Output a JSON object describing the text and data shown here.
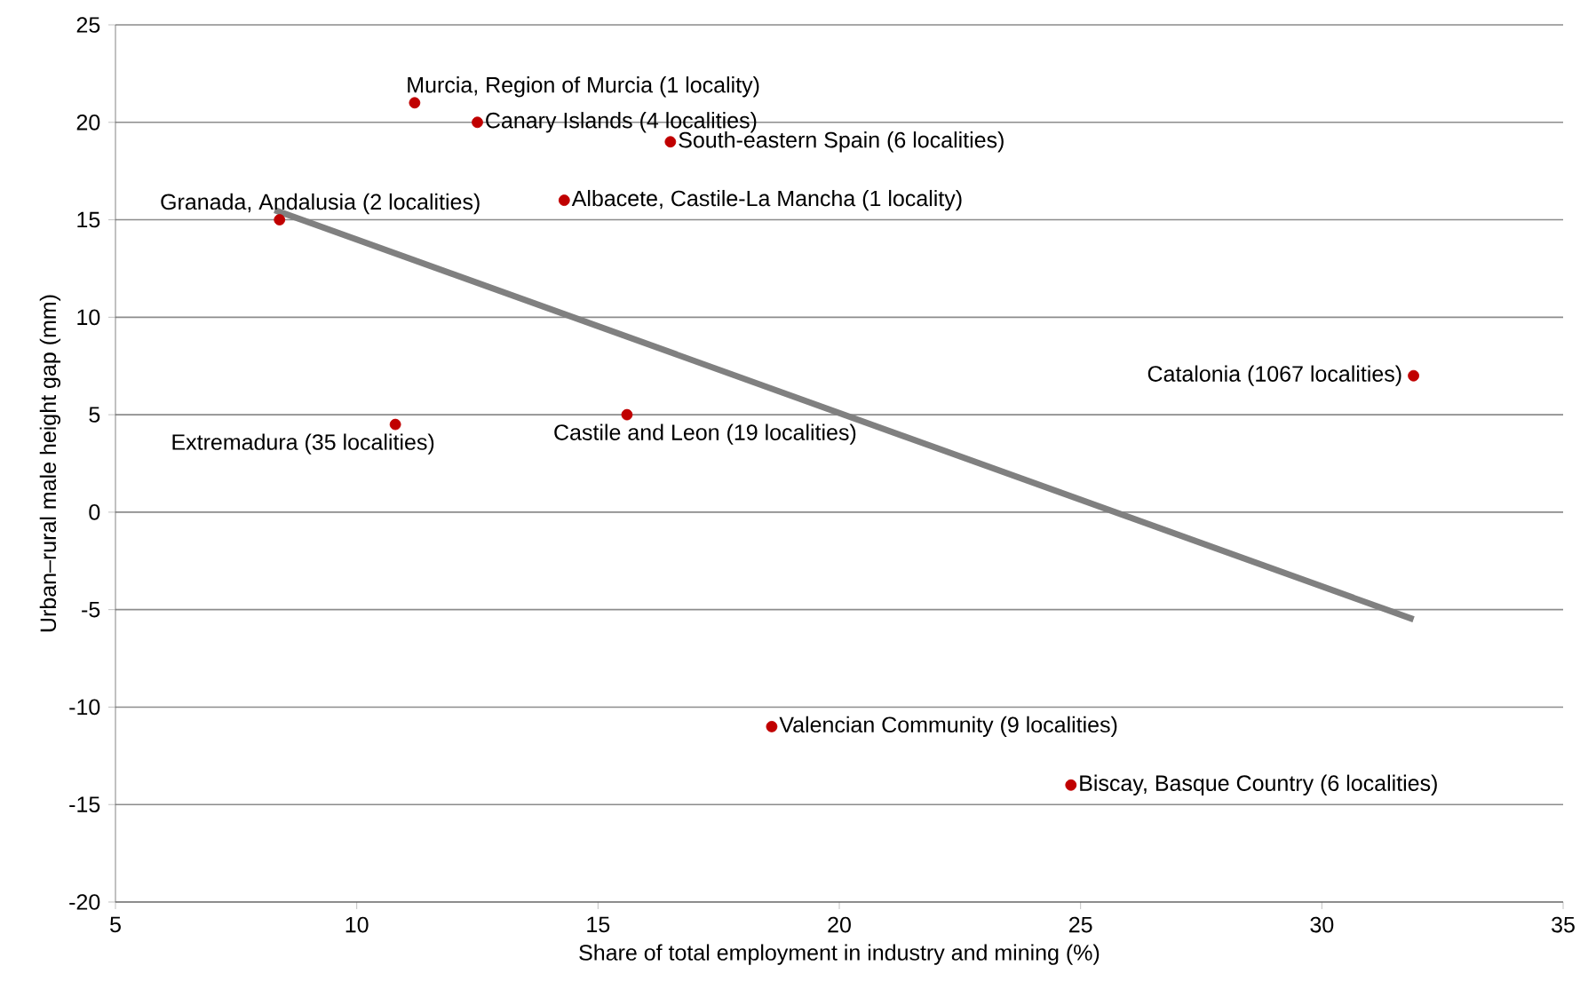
{
  "chart_data": {
    "type": "scatter",
    "xlabel": "Share of total employment in industry and mining (%)",
    "ylabel": "Urban–rural male height gap (mm)",
    "xlim": [
      5,
      35
    ],
    "xticks": [
      5,
      10,
      15,
      20,
      25,
      30,
      35
    ],
    "ylim": [
      -20,
      25
    ],
    "yticks": [
      -20,
      -15,
      -10,
      -5,
      0,
      5,
      10,
      15,
      20,
      25
    ],
    "grid": "y",
    "series": [
      {
        "type": "scatter",
        "marker": "circle",
        "color": "#c00000",
        "x": [
          11.2,
          12.5,
          16.5,
          14.3,
          8.4,
          31.9,
          10.8,
          15.6,
          18.6,
          24.8
        ],
        "values": [
          21,
          20,
          19,
          16,
          15,
          7,
          4.5,
          5,
          -11,
          -14
        ]
      },
      {
        "type": "line",
        "marker": "none",
        "color": "#808080",
        "x": [
          8.3,
          31.9
        ],
        "values": [
          15.5,
          -5.5
        ]
      }
    ],
    "annotations": [
      {
        "text": "Murcia, Region of Murcia (1 locality)",
        "x": 11.2,
        "y": 21
      },
      {
        "text": "Canary Islands (4 localities)",
        "x": 12.5,
        "y": 20
      },
      {
        "text": "South-eastern Spain (6 localities)",
        "x": 16.5,
        "y": 19
      },
      {
        "text": "Albacete, Castile-La Mancha (1 locality)",
        "x": 14.3,
        "y": 16
      },
      {
        "text": "Granada, Andalusia (2 localities)",
        "x": 8.4,
        "y": 15
      },
      {
        "text": "Catalonia (1067 localities)",
        "x": 31.9,
        "y": 7
      },
      {
        "text": "Extremadura (35 localities)",
        "x": 10.8,
        "y": 4.5
      },
      {
        "text": "Castile and Leon (19 localities)",
        "x": 15.6,
        "y": 5
      },
      {
        "text": "Valencian Community (9 localities)",
        "x": 18.6,
        "y": -11
      },
      {
        "text": "Biscay, Basque Country (6 localities)",
        "x": 24.8,
        "y": -14
      }
    ]
  }
}
